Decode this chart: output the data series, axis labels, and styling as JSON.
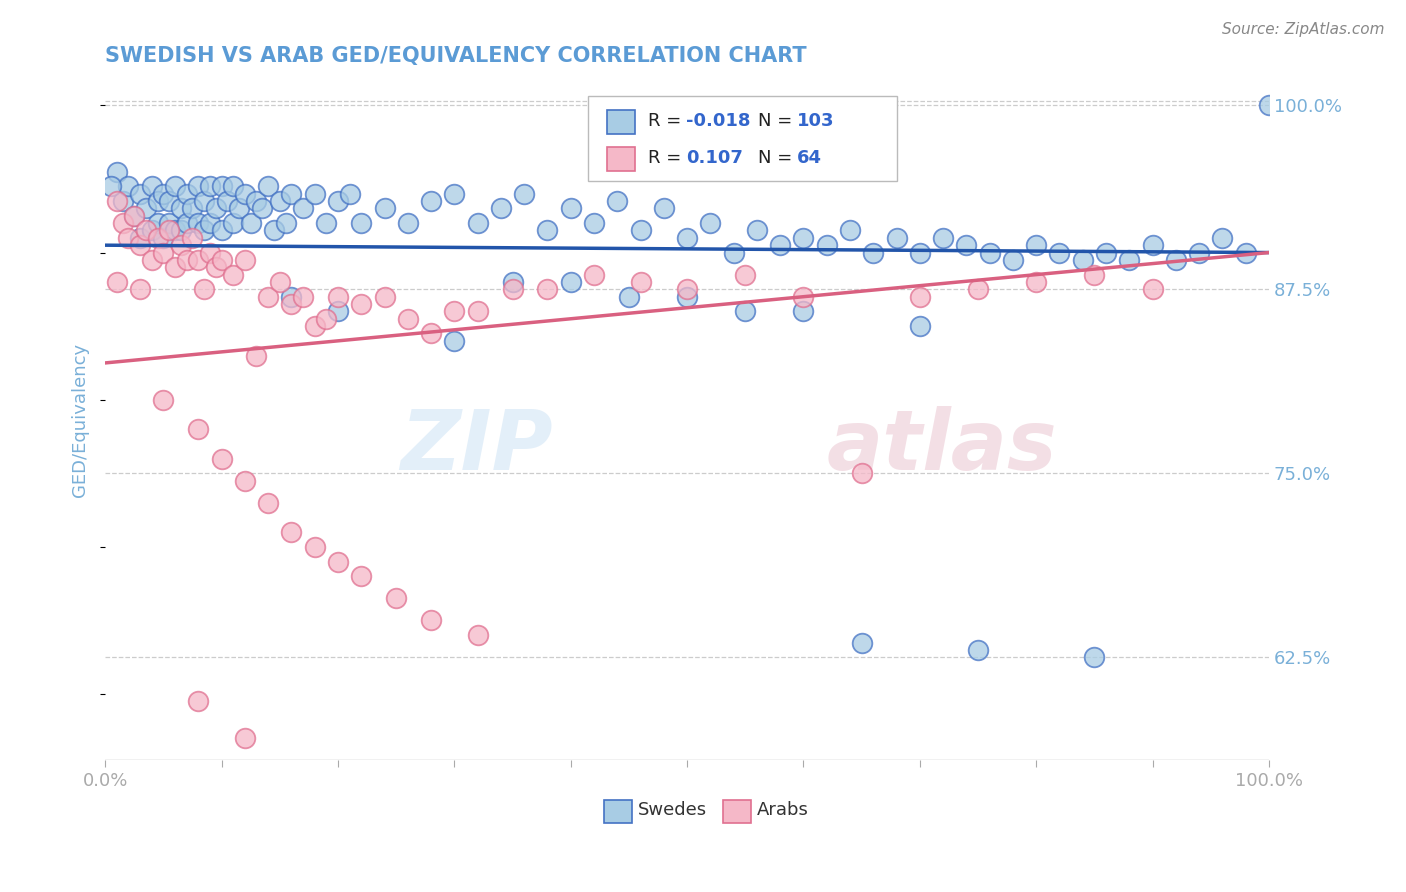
{
  "title": "SWEDISH VS ARAB GED/EQUIVALENCY CORRELATION CHART",
  "source": "Source: ZipAtlas.com",
  "ylabel": "GED/Equivalency",
  "x_min": 0.0,
  "x_max": 1.0,
  "y_min": 0.555,
  "y_max": 1.018,
  "yticks": [
    0.625,
    0.75,
    0.875,
    1.0
  ],
  "ytick_labels": [
    "62.5%",
    "75.0%",
    "87.5%",
    "100.0%"
  ],
  "watermark_zip": "ZIP",
  "watermark_atlas": "atlas",
  "blue_color": "#a8cce4",
  "pink_color": "#f5b8c8",
  "blue_edge_color": "#4472c4",
  "pink_edge_color": "#e07090",
  "blue_line_color": "#2255aa",
  "pink_line_color": "#d96080",
  "title_color": "#5b9bd5",
  "axis_color": "#7ab0d8",
  "grid_color": "#cccccc",
  "source_color": "#888888",
  "swedes_label": "Swedes",
  "arabs_label": "Arabs",
  "r_n_color": "#3366cc",
  "blue_trend_start": 0.905,
  "blue_trend_end": 0.9,
  "pink_trend_start": 0.825,
  "pink_trend_end": 0.9,
  "blue_scatter_x": [
    0.01,
    0.015,
    0.02,
    0.025,
    0.03,
    0.03,
    0.035,
    0.04,
    0.04,
    0.045,
    0.045,
    0.05,
    0.05,
    0.055,
    0.055,
    0.06,
    0.06,
    0.065,
    0.065,
    0.07,
    0.07,
    0.075,
    0.08,
    0.08,
    0.085,
    0.085,
    0.09,
    0.09,
    0.095,
    0.1,
    0.1,
    0.105,
    0.11,
    0.11,
    0.115,
    0.12,
    0.125,
    0.13,
    0.135,
    0.14,
    0.145,
    0.15,
    0.155,
    0.16,
    0.17,
    0.18,
    0.19,
    0.2,
    0.21,
    0.22,
    0.24,
    0.26,
    0.28,
    0.3,
    0.32,
    0.34,
    0.36,
    0.38,
    0.4,
    0.42,
    0.44,
    0.46,
    0.48,
    0.5,
    0.52,
    0.54,
    0.56,
    0.58,
    0.6,
    0.62,
    0.64,
    0.66,
    0.68,
    0.7,
    0.72,
    0.74,
    0.76,
    0.78,
    0.8,
    0.82,
    0.84,
    0.86,
    0.88,
    0.9,
    0.92,
    0.94,
    0.96,
    0.98,
    1.0,
    0.005,
    0.35,
    0.45,
    0.55,
    0.65,
    0.75,
    0.85,
    0.4,
    0.5,
    0.6,
    0.7,
    0.16,
    0.2,
    0.3
  ],
  "blue_scatter_y": [
    0.955,
    0.935,
    0.945,
    0.925,
    0.94,
    0.91,
    0.93,
    0.945,
    0.915,
    0.935,
    0.92,
    0.94,
    0.91,
    0.935,
    0.92,
    0.945,
    0.915,
    0.93,
    0.915,
    0.94,
    0.92,
    0.93,
    0.945,
    0.92,
    0.935,
    0.915,
    0.945,
    0.92,
    0.93,
    0.945,
    0.915,
    0.935,
    0.945,
    0.92,
    0.93,
    0.94,
    0.92,
    0.935,
    0.93,
    0.945,
    0.915,
    0.935,
    0.92,
    0.94,
    0.93,
    0.94,
    0.92,
    0.935,
    0.94,
    0.92,
    0.93,
    0.92,
    0.935,
    0.94,
    0.92,
    0.93,
    0.94,
    0.915,
    0.93,
    0.92,
    0.935,
    0.915,
    0.93,
    0.91,
    0.92,
    0.9,
    0.915,
    0.905,
    0.91,
    0.905,
    0.915,
    0.9,
    0.91,
    0.9,
    0.91,
    0.905,
    0.9,
    0.895,
    0.905,
    0.9,
    0.895,
    0.9,
    0.895,
    0.905,
    0.895,
    0.9,
    0.91,
    0.9,
    1.0,
    0.945,
    0.88,
    0.87,
    0.86,
    0.635,
    0.63,
    0.625,
    0.88,
    0.87,
    0.86,
    0.85,
    0.87,
    0.86,
    0.84
  ],
  "pink_scatter_x": [
    0.01,
    0.01,
    0.015,
    0.02,
    0.025,
    0.03,
    0.03,
    0.035,
    0.04,
    0.045,
    0.05,
    0.055,
    0.06,
    0.065,
    0.07,
    0.075,
    0.08,
    0.085,
    0.09,
    0.095,
    0.1,
    0.11,
    0.12,
    0.13,
    0.14,
    0.15,
    0.16,
    0.17,
    0.18,
    0.19,
    0.2,
    0.22,
    0.24,
    0.26,
    0.28,
    0.3,
    0.32,
    0.35,
    0.38,
    0.42,
    0.46,
    0.5,
    0.55,
    0.6,
    0.65,
    0.7,
    0.75,
    0.8,
    0.85,
    0.9,
    0.05,
    0.08,
    0.1,
    0.12,
    0.14,
    0.16,
    0.18,
    0.2,
    0.22,
    0.25,
    0.28,
    0.32,
    0.08,
    0.12
  ],
  "pink_scatter_y": [
    0.935,
    0.88,
    0.92,
    0.91,
    0.925,
    0.905,
    0.875,
    0.915,
    0.895,
    0.91,
    0.9,
    0.915,
    0.89,
    0.905,
    0.895,
    0.91,
    0.895,
    0.875,
    0.9,
    0.89,
    0.895,
    0.885,
    0.895,
    0.83,
    0.87,
    0.88,
    0.865,
    0.87,
    0.85,
    0.855,
    0.87,
    0.865,
    0.87,
    0.855,
    0.845,
    0.86,
    0.86,
    0.875,
    0.875,
    0.885,
    0.88,
    0.875,
    0.885,
    0.87,
    0.75,
    0.87,
    0.875,
    0.88,
    0.885,
    0.875,
    0.8,
    0.78,
    0.76,
    0.745,
    0.73,
    0.71,
    0.7,
    0.69,
    0.68,
    0.665,
    0.65,
    0.64,
    0.595,
    0.57
  ]
}
